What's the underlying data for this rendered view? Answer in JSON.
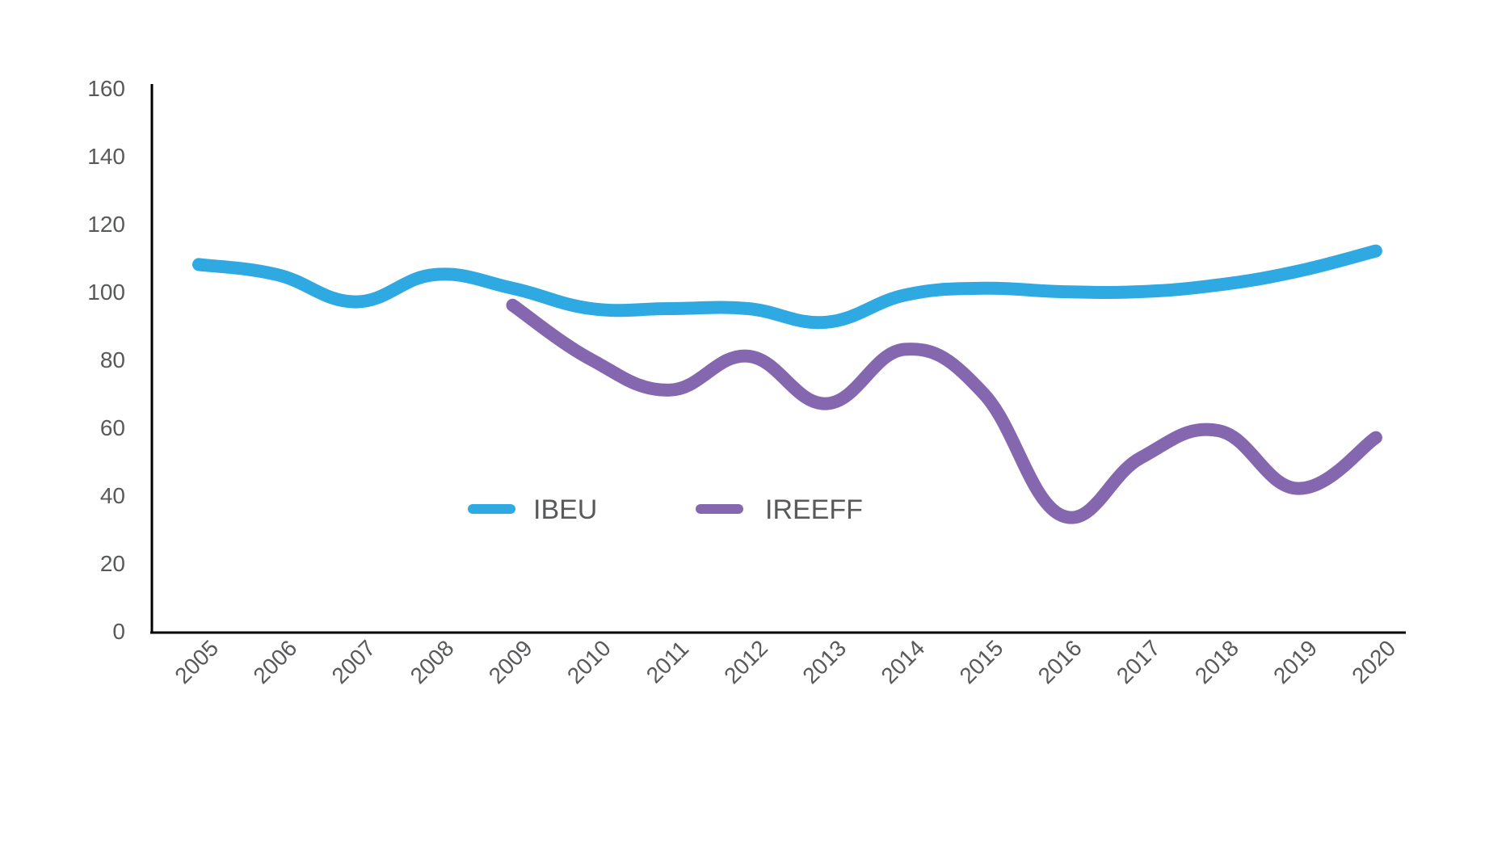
{
  "chart_data": {
    "type": "line",
    "x": [
      "2005",
      "2006",
      "2007",
      "2008",
      "2009",
      "2010",
      "2011",
      "2012",
      "2013",
      "2014",
      "2015",
      "2016",
      "2017",
      "2018",
      "2019",
      "2020"
    ],
    "series": [
      {
        "name": "IBEU",
        "color": "#2fa9e1",
        "values": [
          108,
          105,
          97,
          105,
          101,
          95,
          95,
          95,
          91,
          99,
          101,
          100,
          100,
          102,
          106,
          112
        ]
      },
      {
        "name": "IREEFF",
        "color": "#8567b0",
        "values": [
          null,
          null,
          null,
          null,
          96,
          80,
          71,
          81,
          67,
          83,
          70,
          34,
          51,
          59,
          42,
          57
        ]
      }
    ],
    "ylim": [
      0,
      160
    ],
    "yticks": [
      0,
      20,
      40,
      60,
      80,
      100,
      120,
      140,
      160
    ],
    "grid": false,
    "legend_position": "inside-center",
    "title": "",
    "xlabel": "",
    "ylabel": ""
  }
}
